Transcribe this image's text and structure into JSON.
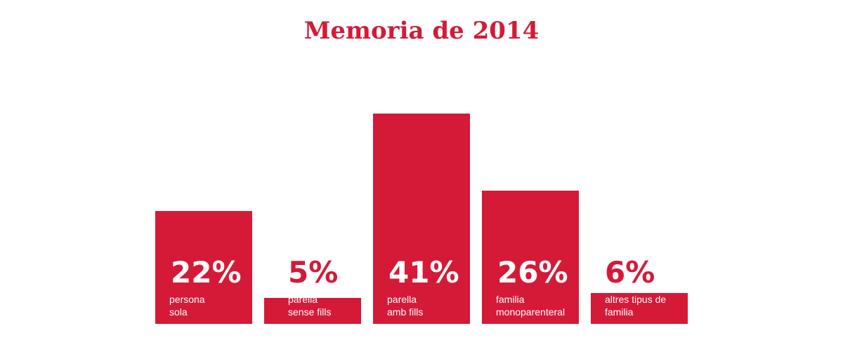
{
  "chart_data": {
    "type": "bar",
    "title": "Memoria de 2014",
    "categories": [
      "persona\nsola",
      "parella\nsense fills",
      "parella\namb fills",
      "familia\nmonoparenteral",
      "altres tipus de\nfamilia"
    ],
    "values": [
      22,
      5,
      41,
      26,
      6
    ],
    "value_labels": [
      "22%",
      "5%",
      "41%",
      "26%",
      "6%"
    ],
    "xlabel": "",
    "ylabel": "",
    "ylim": [
      0,
      41
    ],
    "grid": false,
    "colors": {
      "bar": "#d41a37",
      "title": "#d41a37",
      "label": "#ffffff"
    }
  }
}
